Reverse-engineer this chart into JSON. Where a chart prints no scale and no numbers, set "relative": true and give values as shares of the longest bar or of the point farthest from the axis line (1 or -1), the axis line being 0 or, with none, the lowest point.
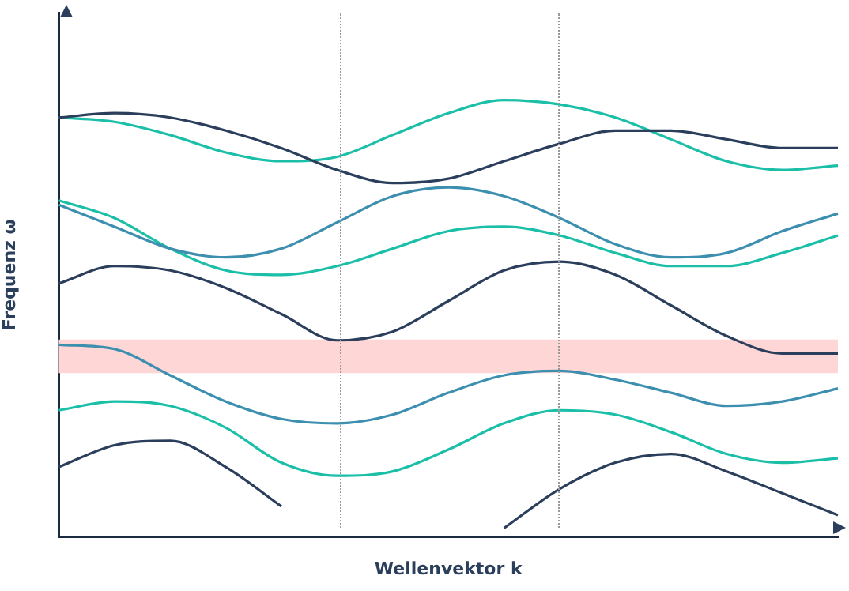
{
  "chart_data": {
    "type": "line",
    "relative": true,
    "xlabel": "Wellenvektor k",
    "ylabel": "Frequenz ω",
    "marker": "none",
    "line_style": "solid",
    "grid": false,
    "legend": false,
    "tick_labels": false,
    "categories": [
      null,
      null,
      null,
      null,
      null,
      null,
      null,
      null,
      null,
      null,
      null,
      null,
      null,
      null,
      null
    ],
    "bands": [
      {
        "axis": "y",
        "from": 0.375,
        "to": 0.452,
        "color": "#ffd6d6"
      }
    ],
    "series": [
      {
        "color": "#2b3f5c",
        "values": [
          0.96,
          0.97,
          0.96,
          0.93,
          0.89,
          0.84,
          0.81,
          0.82,
          0.86,
          0.9,
          0.93,
          0.93,
          0.91,
          0.89,
          0.89
        ]
      },
      {
        "color": "#1bbfa8",
        "values": [
          0.96,
          0.95,
          0.92,
          0.88,
          0.86,
          0.87,
          0.92,
          0.97,
          1.0,
          0.99,
          0.96,
          0.91,
          0.86,
          0.84,
          0.85
        ]
      },
      {
        "color": "#3d8fb0",
        "values": [
          0.76,
          0.71,
          0.66,
          0.64,
          0.66,
          0.72,
          0.78,
          0.8,
          0.78,
          0.73,
          0.67,
          0.64,
          0.65,
          0.7,
          0.74
        ]
      },
      {
        "color": "#1bbfa8",
        "values": [
          0.77,
          0.73,
          0.66,
          0.61,
          0.6,
          0.62,
          0.66,
          0.7,
          0.71,
          0.69,
          0.65,
          0.62,
          0.62,
          0.65,
          0.69
        ]
      },
      {
        "color": "#2b3f5c",
        "values": [
          0.58,
          0.62,
          0.61,
          0.57,
          0.51,
          0.45,
          0.47,
          0.54,
          0.61,
          0.63,
          0.6,
          0.53,
          0.46,
          0.42,
          0.42
        ]
      },
      {
        "color": "#3d8fb0",
        "values": [
          0.44,
          0.43,
          0.37,
          0.31,
          0.27,
          0.26,
          0.28,
          0.33,
          0.37,
          0.38,
          0.36,
          0.33,
          0.3,
          0.31,
          0.34
        ]
      },
      {
        "color": "#1bbfa8",
        "values": [
          0.29,
          0.31,
          0.3,
          0.25,
          0.17,
          0.14,
          0.15,
          0.2,
          0.26,
          0.29,
          0.28,
          0.24,
          0.19,
          0.17,
          0.18
        ]
      },
      {
        "color": "#2b3f5c",
        "values": [
          0.16,
          0.21,
          0.22,
          0.16,
          0.07,
          null,
          null,
          null,
          0.02,
          0.11,
          0.17,
          0.19,
          0.15,
          0.1,
          0.05
        ]
      }
    ]
  }
}
